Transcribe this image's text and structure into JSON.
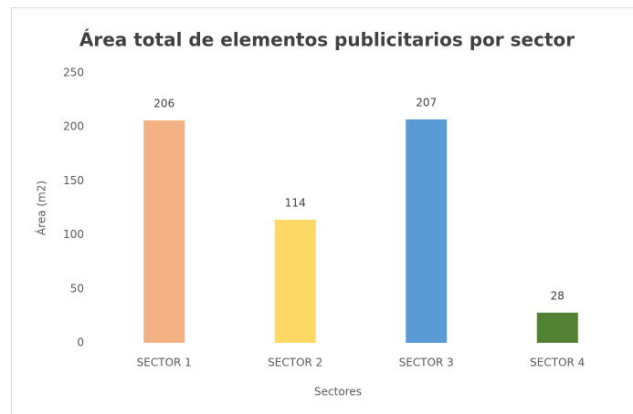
{
  "chart_data": {
    "type": "bar",
    "title": "Área total de elementos publicitarios por sector",
    "x_label": "Sectores",
    "y_label": "Área (m2)",
    "categories": [
      "SECTOR 1",
      "SECTOR 2",
      "SECTOR 3",
      "SECTOR 4"
    ],
    "values": [
      206,
      114,
      207,
      28
    ],
    "colors": [
      "#f4b183",
      "#ffd966",
      "#5b9bd5",
      "#548235"
    ],
    "ylim": [
      0,
      250
    ],
    "yticks": [
      0,
      50,
      100,
      150,
      200,
      250
    ],
    "grid": false
  }
}
